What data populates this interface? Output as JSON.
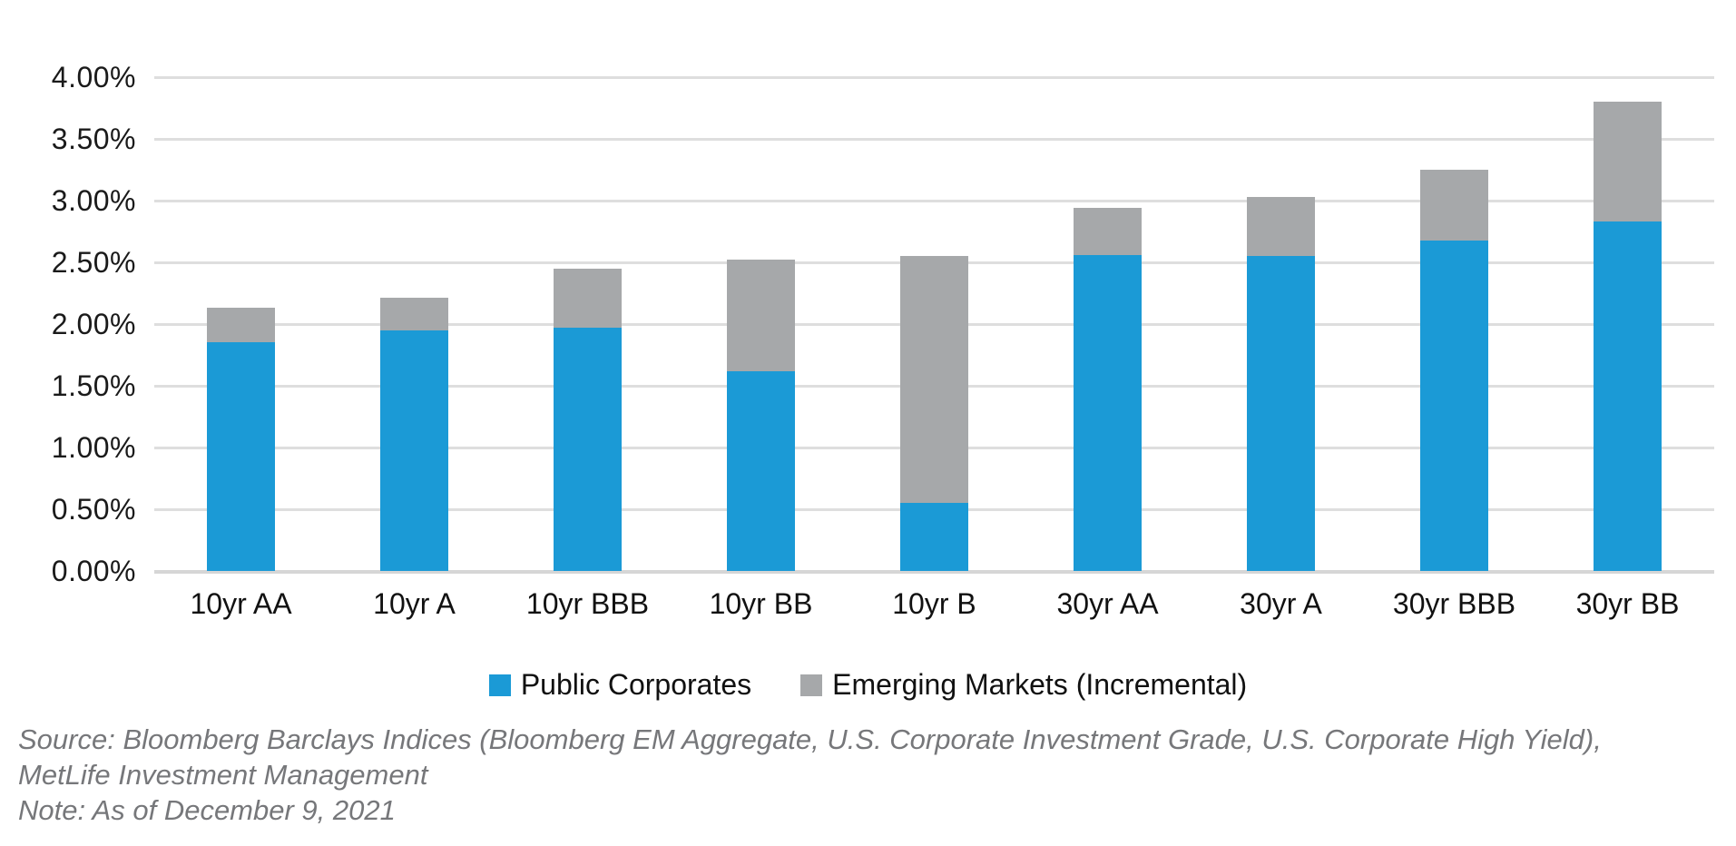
{
  "chart_data": {
    "type": "bar",
    "stacked": true,
    "title": "",
    "categories": [
      "10yr AA",
      "10yr A",
      "10yr BBB",
      "10yr BB",
      "10yr B",
      "30yr AA",
      "30yr A",
      "30yr BBB",
      "30yr BB"
    ],
    "series": [
      {
        "name": "Public Corporates",
        "color": "#1b9ad6",
        "values": [
          1.85,
          1.95,
          1.97,
          1.62,
          0.55,
          2.56,
          2.55,
          2.68,
          2.83
        ]
      },
      {
        "name": "Emerging Markets (Incremental)",
        "color": "#a6a8aa",
        "values": [
          0.28,
          0.26,
          0.48,
          0.9,
          2.0,
          0.38,
          0.48,
          0.57,
          0.97
        ]
      }
    ],
    "stack_totals": [
      2.13,
      2.21,
      2.45,
      2.52,
      2.55,
      2.94,
      3.03,
      3.25,
      3.8
    ],
    "xlabel": "",
    "ylabel": "",
    "ylim": [
      0,
      4.0
    ],
    "y_unit": "%",
    "y_ticks": [
      "4.00%",
      "3.50%",
      "3.00%",
      "2.50%",
      "2.00%",
      "1.50%",
      "1.00%",
      "0.50%",
      "0.00%"
    ],
    "y_tick_values": [
      4.0,
      3.5,
      3.0,
      2.5,
      2.0,
      1.5,
      1.0,
      0.5,
      0.0
    ],
    "grid": true,
    "legend_position": "bottom"
  },
  "legend": {
    "items": [
      {
        "label": "Public Corporates",
        "color": "#1b9ad6"
      },
      {
        "label": "Emerging Markets (Incremental)",
        "color": "#a6a8aa"
      }
    ]
  },
  "footer": {
    "source_line_1": "Source: Bloomberg Barclays Indices (Bloomberg EM Aggregate, U.S. Corporate Investment Grade, U.S. Corporate High Yield),",
    "source_line_2": "MetLife Investment Management",
    "note_line": "Note: As of December 9, 2021"
  },
  "colors": {
    "public_corporates_blue": "#1b9ad6",
    "emerging_markets_gray": "#a6a8aa",
    "gridline": "#dedede",
    "baseline": "#d6d6d6",
    "axis_text": "#1a1a1a",
    "footer_text": "#76777a",
    "background": "#ffffff"
  }
}
